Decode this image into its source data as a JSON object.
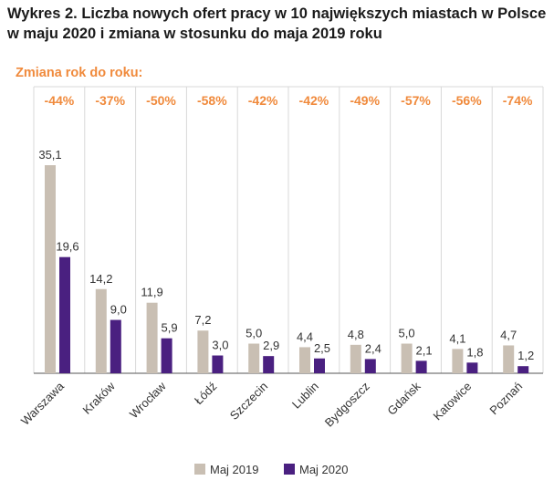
{
  "title": "Wykres 2. Liczba nowych ofert pracy w 10 największych miastach w Polsce w maju 2020 i zmiana w stosunku do maja 2019 roku",
  "yoy_label": "Zmiana rok do roku:",
  "colors": {
    "accent": "#f08a3c",
    "series_2019": "#c9bfb3",
    "series_2020": "#4a2080",
    "grid": "#d9d9d9",
    "axis": "#555555"
  },
  "chart_data": {
    "type": "bar",
    "title": "Wykres 2. Liczba nowych ofert pracy w 10 największych miastach w Polsce w maju 2020 i zmiana w stosunku do maja 2019 roku",
    "categories": [
      "Warszawa",
      "Kraków",
      "Wrocław",
      "Łódź",
      "Szczecin",
      "Lublin",
      "Bydgoszcz",
      "Gdańsk",
      "Katowice",
      "Poznań"
    ],
    "series": [
      {
        "name": "Maj 2019",
        "values": [
          35.1,
          14.2,
          11.9,
          7.2,
          5.0,
          4.4,
          4.8,
          5.0,
          4.1,
          4.7
        ],
        "labels": [
          "35,1",
          "14,2",
          "11,9",
          "7,2",
          "5,0",
          "4,4",
          "4,8",
          "5,0",
          "4,1",
          "4,7"
        ]
      },
      {
        "name": "Maj 2020",
        "values": [
          19.6,
          9.0,
          5.9,
          3.0,
          2.9,
          2.5,
          2.4,
          2.1,
          1.8,
          1.2
        ],
        "labels": [
          "19,6",
          "9,0",
          "5,9",
          "3,0",
          "2,9",
          "2,5",
          "2,4",
          "2,1",
          "1,8",
          "1,2"
        ]
      }
    ],
    "yoy_change": [
      "-44%",
      "-37%",
      "-50%",
      "-58%",
      "-42%",
      "-42%",
      "-49%",
      "-57%",
      "-56%",
      "-74%"
    ],
    "ylim": [
      0,
      36
    ],
    "grid": true,
    "legend_position": "bottom-center"
  }
}
